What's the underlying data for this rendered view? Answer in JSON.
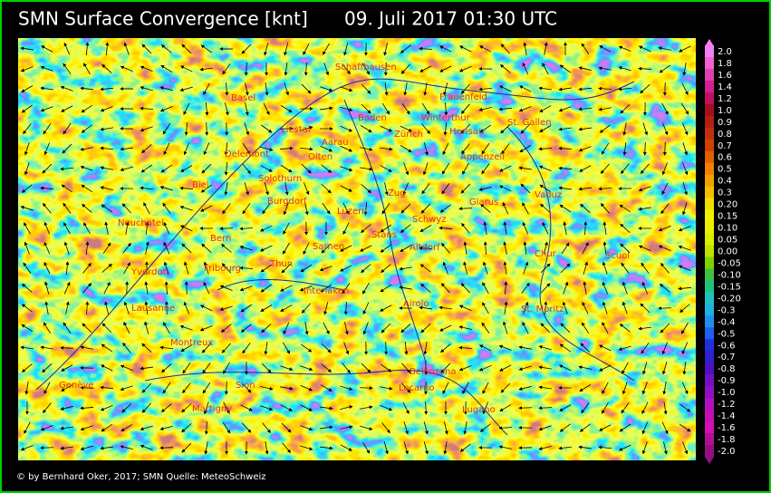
{
  "header": {
    "title": "SMN Surface Convergence [knt]",
    "time": "09. Juli 2017 01:30 UTC"
  },
  "places": [
    "Schaffhausen",
    "Basel",
    "Frauenfeld",
    "Winterthur",
    "Liestal",
    "Baden",
    "Herisau",
    "St. Gallen",
    "Zürich",
    "Aarau",
    "Olten",
    "Delemont",
    "Appenzell",
    "Solothurn",
    "Biel",
    "Burgdorf",
    "Zug",
    "Vaduz",
    "Luzern",
    "Glarus",
    "Schwyz",
    "Neuchatel",
    "Bern",
    "Stans",
    "Sarnen",
    "Altdorf",
    "Chur",
    "Scuol",
    "Yverdon",
    "Fribourg",
    "Thun",
    "Interlaken",
    "Airolo",
    "Lausanne",
    "St. Moritz",
    "Montreux",
    "Bellinzona",
    "Genève",
    "Sion",
    "Locarno",
    "Martigny",
    "Lugano"
  ],
  "legend": {
    "labels": [
      "2.0",
      "1.8",
      "1.6",
      "1.4",
      "1.2",
      "1.0",
      "0.9",
      "0.8",
      "0.7",
      "0.6",
      "0.5",
      "0.4",
      "0.3",
      "0.20",
      "0.15",
      "0.10",
      "0.05",
      "0.00",
      "-0.05",
      "-0.10",
      "-0.15",
      "-0.20",
      "-0.3",
      "-0.4",
      "-0.5",
      "-0.6",
      "-0.7",
      "-0.8",
      "-0.9",
      "-1.0",
      "-1.2",
      "-1.4",
      "-1.6",
      "-1.8",
      "-2.0"
    ]
  },
  "footer": {
    "credit": "© by Bernhard Oker, 2017; SMN Quelle: MeteoSchweiz"
  }
}
